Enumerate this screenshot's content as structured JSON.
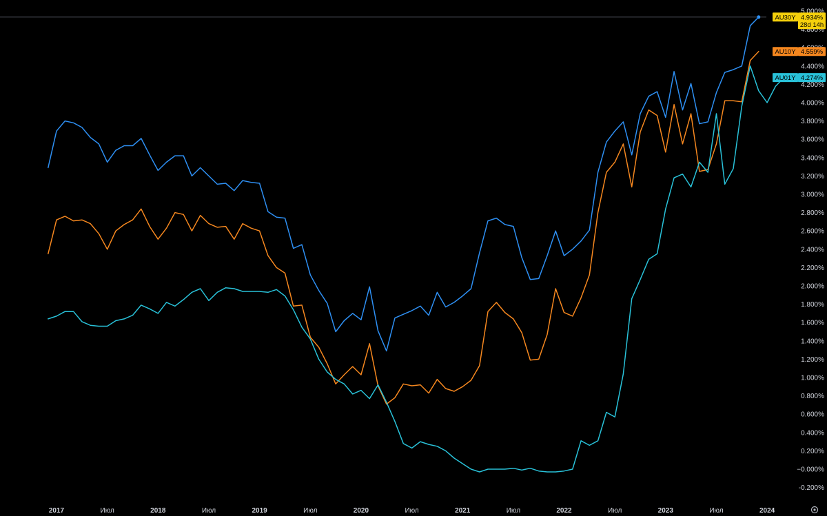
{
  "chart_data": {
    "type": "line",
    "x_axis": {
      "ticks": [
        {
          "label": "2017",
          "t": 2017.0,
          "year": true
        },
        {
          "label": "Июл",
          "t": 2017.5,
          "year": false
        },
        {
          "label": "2018",
          "t": 2018.0,
          "year": true
        },
        {
          "label": "Июл",
          "t": 2018.5,
          "year": false
        },
        {
          "label": "2019",
          "t": 2019.0,
          "year": true
        },
        {
          "label": "Июл",
          "t": 2019.5,
          "year": false
        },
        {
          "label": "2020",
          "t": 2020.0,
          "year": true
        },
        {
          "label": "Июл",
          "t": 2020.5,
          "year": false
        },
        {
          "label": "2021",
          "t": 2021.0,
          "year": true
        },
        {
          "label": "Июл",
          "t": 2021.5,
          "year": false
        },
        {
          "label": "2022",
          "t": 2022.0,
          "year": true
        },
        {
          "label": "Июл",
          "t": 2022.5,
          "year": false
        },
        {
          "label": "2023",
          "t": 2023.0,
          "year": true
        },
        {
          "label": "Июл",
          "t": 2023.5,
          "year": false
        },
        {
          "label": "2024",
          "t": 2024.0,
          "year": true
        }
      ],
      "range": [
        2016.75,
        2024.2
      ]
    },
    "y_axis": {
      "range": [
        -0.35,
        5.0
      ],
      "unit": "%",
      "tick_labels": [
        "-0.200%",
        "−0.000%",
        "0.200%",
        "0.400%",
        "0.600%",
        "0.800%",
        "1.000%",
        "1.200%",
        "1.400%",
        "1.600%",
        "1.800%",
        "2.000%",
        "2.200%",
        "2.400%",
        "2.600%",
        "2.800%",
        "3.000%",
        "3.200%",
        "3.400%",
        "3.600%",
        "3.800%",
        "4.000%",
        "4.200%",
        "4.400%",
        "4.600%",
        "4.800%",
        "5.000%"
      ],
      "tick_values": [
        -0.2,
        0.0,
        0.2,
        0.4,
        0.6,
        0.8,
        1.0,
        1.2,
        1.4,
        1.6,
        1.8,
        2.0,
        2.2,
        2.4,
        2.6,
        2.8,
        3.0,
        3.2,
        3.4,
        3.6,
        3.8,
        4.0,
        4.2,
        4.4,
        4.6,
        4.8,
        5.0
      ]
    },
    "grid": false,
    "legend": "price tags on right axis",
    "x_start": 2016.917,
    "x_step": 0.08333,
    "series": [
      {
        "name": "AU30Y",
        "color": "#2e8ff2",
        "last_value": "4.934%",
        "countdown": "28d 14h",
        "tag_bg": "#f5d00c",
        "tag_fg": "#000000",
        "values": [
          3.29,
          3.69,
          3.8,
          3.78,
          3.73,
          3.62,
          3.55,
          3.35,
          3.48,
          3.53,
          3.53,
          3.61,
          3.43,
          3.26,
          3.35,
          3.42,
          3.42,
          3.2,
          3.29,
          3.2,
          3.11,
          3.12,
          3.04,
          3.15,
          3.13,
          3.12,
          2.81,
          2.75,
          2.74,
          2.41,
          2.45,
          2.12,
          1.95,
          1.81,
          1.5,
          1.62,
          1.7,
          1.63,
          1.99,
          1.51,
          1.29,
          1.65,
          1.69,
          1.73,
          1.78,
          1.68,
          1.93,
          1.77,
          1.82,
          1.89,
          1.97,
          2.36,
          2.71,
          2.74,
          2.67,
          2.65,
          2.31,
          2.07,
          2.08,
          2.33,
          2.6,
          2.33,
          2.4,
          2.49,
          2.61,
          3.24,
          3.57,
          3.69,
          3.79,
          3.43,
          3.88,
          4.07,
          4.12,
          3.84,
          4.34,
          3.92,
          4.21,
          3.77,
          3.79,
          4.11,
          4.33,
          4.36,
          4.4,
          4.84,
          4.934
        ]
      },
      {
        "name": "AU10Y",
        "color": "#f5871f",
        "last_value": "4.559%",
        "countdown": "",
        "tag_bg": "#f5871f",
        "tag_fg": "#000000",
        "values": [
          2.35,
          2.72,
          2.76,
          2.71,
          2.72,
          2.68,
          2.57,
          2.4,
          2.6,
          2.67,
          2.72,
          2.84,
          2.65,
          2.51,
          2.63,
          2.8,
          2.78,
          2.6,
          2.77,
          2.68,
          2.64,
          2.65,
          2.51,
          2.68,
          2.63,
          2.6,
          2.33,
          2.2,
          2.14,
          1.78,
          1.79,
          1.44,
          1.33,
          1.15,
          0.93,
          1.03,
          1.12,
          1.03,
          1.37,
          0.91,
          0.71,
          0.78,
          0.93,
          0.91,
          0.92,
          0.83,
          0.98,
          0.88,
          0.85,
          0.9,
          0.97,
          1.13,
          1.72,
          1.82,
          1.71,
          1.64,
          1.49,
          1.19,
          1.2,
          1.47,
          1.97,
          1.71,
          1.67,
          1.87,
          2.12,
          2.8,
          3.24,
          3.35,
          3.55,
          3.08,
          3.68,
          3.92,
          3.86,
          3.46,
          3.98,
          3.55,
          3.88,
          3.25,
          3.27,
          3.55,
          4.02,
          4.02,
          4.01,
          4.46,
          4.559
        ]
      },
      {
        "name": "AU01Y",
        "color": "#29c1d8",
        "last_value": "4.274%",
        "countdown": "",
        "tag_bg": "#29c1d8",
        "tag_fg": "#000000",
        "values": [
          1.64,
          1.67,
          1.72,
          1.72,
          1.61,
          1.57,
          1.56,
          1.56,
          1.62,
          1.64,
          1.68,
          1.79,
          1.75,
          1.7,
          1.82,
          1.78,
          1.85,
          1.93,
          1.97,
          1.84,
          1.93,
          1.98,
          1.97,
          1.94,
          1.94,
          1.94,
          1.93,
          1.96,
          1.89,
          1.74,
          1.55,
          1.42,
          1.2,
          1.06,
          0.98,
          0.93,
          0.82,
          0.86,
          0.77,
          0.92,
          0.73,
          0.52,
          0.28,
          0.23,
          0.3,
          0.27,
          0.25,
          0.2,
          0.12,
          0.06,
          0.0,
          -0.03,
          0.0,
          0.0,
          0.0,
          0.01,
          -0.01,
          0.01,
          -0.02,
          -0.03,
          -0.03,
          -0.02,
          0.0,
          0.31,
          0.26,
          0.31,
          0.62,
          0.57,
          1.04,
          1.86,
          2.07,
          2.29,
          2.35,
          2.84,
          3.18,
          3.22,
          3.08,
          3.35,
          3.24,
          3.88,
          3.11,
          3.28,
          3.96,
          4.4,
          4.13,
          4.0,
          4.18,
          4.274
        ]
      }
    ]
  },
  "settings_icon": "gear-icon"
}
